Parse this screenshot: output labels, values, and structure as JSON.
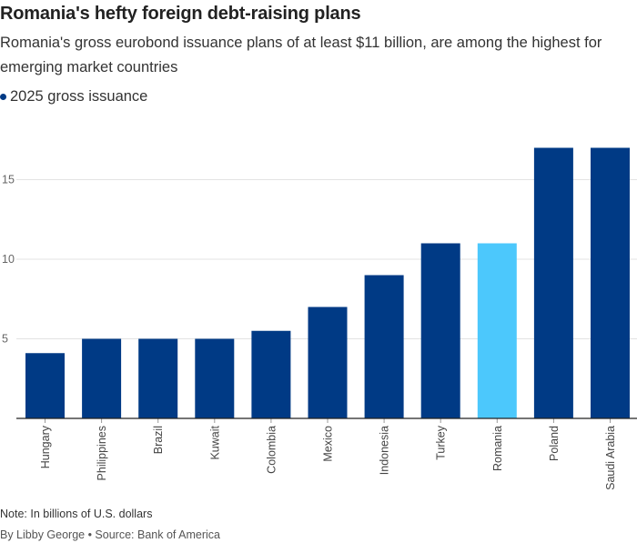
{
  "title": "Romania's hefty foreign debt-raising plans",
  "subtitle": "Romania's gross eurobond issuance plans of at least $11 billion, are among the highest for emerging market countries",
  "legend": {
    "label": "2025 gross issuance",
    "color": "#003a85"
  },
  "note": "Note: In billions of U.S. dollars",
  "source": "By Libby George • Source: Bank of America",
  "colors": {
    "bar": "#003a85",
    "highlight": "#4cc8fc",
    "grid": "#e3e3e3",
    "axis": "#222222"
  },
  "chart_data": {
    "type": "bar",
    "categories": [
      "Hungary",
      "Philippines",
      "Brazil",
      "Kuwait",
      "Colombia",
      "Mexico",
      "Indonesia",
      "Turkey",
      "Romania",
      "Poland",
      "Saudi Arabia"
    ],
    "series": [
      {
        "name": "2025 gross issuance",
        "values": [
          4.1,
          5,
          5,
          5,
          5.5,
          7,
          9,
          11,
          11,
          17,
          17
        ]
      }
    ],
    "highlight": "Romania",
    "yticks": [
      5,
      10,
      15
    ],
    "ylim": [
      0,
      18
    ],
    "grid": true,
    "xlabel": "",
    "ylabel": ""
  }
}
